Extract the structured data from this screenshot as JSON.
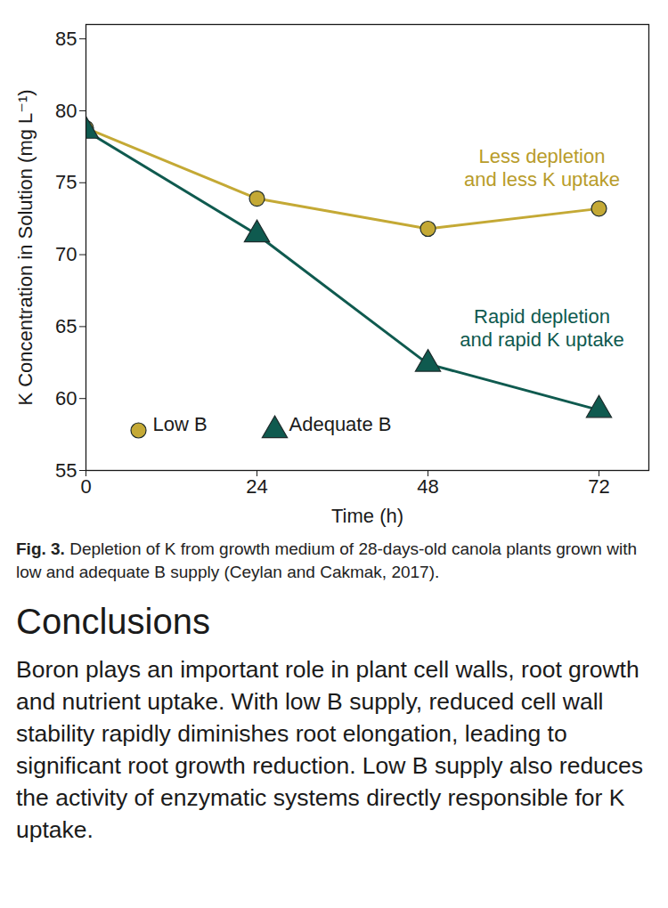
{
  "chart_data": {
    "type": "line",
    "x": [
      0,
      24,
      48,
      72
    ],
    "series": [
      {
        "name": "Low B",
        "color": "#c4a935",
        "marker": "circle",
        "values": [
          78.8,
          73.9,
          71.8,
          73.2
        ]
      },
      {
        "name": "Adequate B",
        "color": "#0f5a4f",
        "marker": "triangle",
        "values": [
          78.6,
          71.4,
          62.4,
          59.2
        ]
      }
    ],
    "xlabel": "Time (h)",
    "ylabel": "K Concentration in Solution (mg L⁻¹)",
    "xlim": [
      0,
      79
    ],
    "ylim": [
      55,
      86
    ],
    "xticks": [
      0,
      24,
      48,
      72
    ],
    "yticks": [
      55,
      60,
      65,
      70,
      75,
      80,
      85
    ],
    "grid": false,
    "legend": "lower left",
    "annotations": [
      {
        "text": "Less depletion\nand less K uptake",
        "color": "#b89c2a"
      },
      {
        "text": "Rapid depletion\nand rapid K uptake",
        "color": "#0f5a4f"
      }
    ]
  },
  "figure": {
    "label": "Fig. 3.",
    "caption": "Depletion of K from growth medium of 28-days-old canola plants grown with low and adequate B supply (Ceylan and Cakmak, 2017)."
  },
  "conclusions": {
    "heading": "Conclusions",
    "body": "Boron plays an important role in plant cell walls, root growth and nutrient uptake. With low B supply, reduced cell wall stability rapidly diminishes root elongation, leading to significant root growth reduction. Low B supply also reduces the activity of enzymatic systems directly responsible for K uptake."
  }
}
